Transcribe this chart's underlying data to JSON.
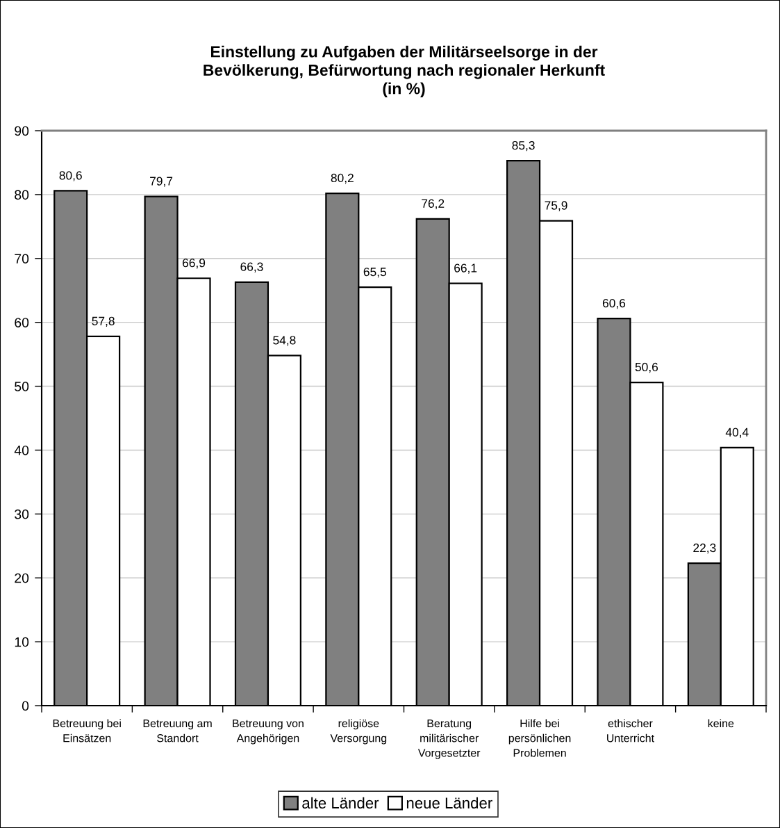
{
  "chart_data": {
    "type": "bar",
    "title": "Einstellung zu Aufgaben der Militärseelsorge in der\nBevölkerung, Befürwortung nach regionaler Herkunft\n(in %)",
    "categories": [
      "Betreuung bei\nEinsätzen",
      "Betreuung am\nStandort",
      "Betreuung von\nAngehörigen",
      "religiöse\nVersorgung",
      "Beratung\nmilitärischer\nVorgesetzter",
      "Hilfe bei\npersönlichen\nProblemen",
      "ethischer\nUnterricht",
      "keine"
    ],
    "series": [
      {
        "name": "alte Länder",
        "color": "#808080",
        "values": [
          80.6,
          79.7,
          66.3,
          80.2,
          76.2,
          85.3,
          60.6,
          22.3
        ],
        "value_labels": [
          "80,6",
          "79,7",
          "66,3",
          "80,2",
          "76,2",
          "85,3",
          "60,6",
          "22,3"
        ]
      },
      {
        "name": "neue Länder",
        "color": "#ffffff",
        "values": [
          57.8,
          66.9,
          54.8,
          65.5,
          66.1,
          75.9,
          50.6,
          40.4
        ],
        "value_labels": [
          "57,8",
          "66,9",
          "54,8",
          "65,5",
          "66,1",
          "75,9",
          "50,6",
          "40,4"
        ]
      }
    ],
    "ylim": [
      0,
      90
    ],
    "yticks": [
      0,
      10,
      20,
      30,
      40,
      50,
      60,
      70,
      80,
      90
    ],
    "grid": "y",
    "legend": "bottom"
  }
}
